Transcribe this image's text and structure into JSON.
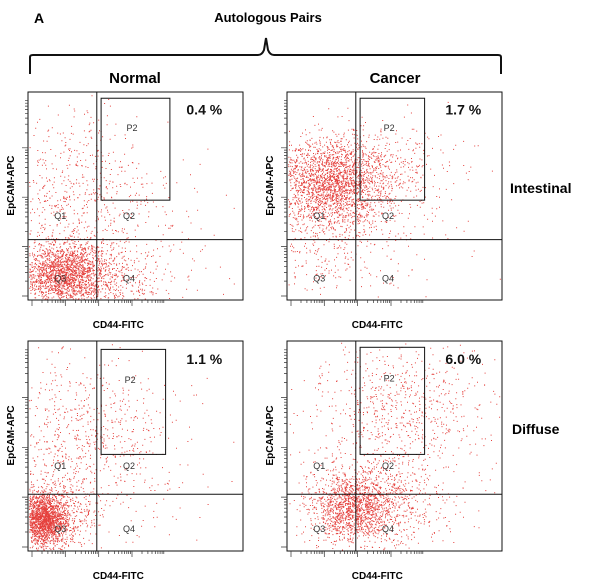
{
  "figure": {
    "panel_letter": "A",
    "group_title": "Autologous Pairs",
    "column_labels": [
      "Normal",
      "Cancer"
    ],
    "row_labels": [
      "Intestinal",
      "Diffuse"
    ]
  },
  "chart_data": [
    {
      "type": "scatter",
      "column": "Normal",
      "row": "Intestinal",
      "xlabel": "CD44-FITC",
      "ylabel": "EpCAM-APC",
      "percentage": "0.4 %",
      "gate": "P2",
      "quadrants": [
        "Q1",
        "Q2",
        "Q3",
        "Q4"
      ],
      "gate_fraction_percent": 0.4,
      "point_color": "#e0201b",
      "clusters": [
        {
          "x": 0.17,
          "y": 0.13,
          "sx": 0.1,
          "sy": 0.07,
          "n": 1500
        },
        {
          "x": 0.25,
          "y": 0.1,
          "sx": 0.2,
          "sy": 0.1,
          "n": 900
        },
        {
          "x": 0.2,
          "y": 0.5,
          "sx": 0.18,
          "sy": 0.2,
          "n": 600
        },
        {
          "x": 0.55,
          "y": 0.35,
          "sx": 0.18,
          "sy": 0.2,
          "n": 130
        }
      ]
    },
    {
      "type": "scatter",
      "column": "Cancer",
      "row": "Intestinal",
      "xlabel": "CD44-FITC",
      "ylabel": "EpCAM-APC",
      "percentage": "1.7 %",
      "gate": "P2",
      "quadrants": [
        "Q1",
        "Q2",
        "Q3",
        "Q4"
      ],
      "gate_fraction_percent": 1.7,
      "point_color": "#e0201b",
      "clusters": [
        {
          "x": 0.18,
          "y": 0.57,
          "sx": 0.13,
          "sy": 0.1,
          "n": 1700
        },
        {
          "x": 0.3,
          "y": 0.58,
          "sx": 0.15,
          "sy": 0.12,
          "n": 700
        },
        {
          "x": 0.18,
          "y": 0.3,
          "sx": 0.15,
          "sy": 0.13,
          "n": 350
        },
        {
          "x": 0.55,
          "y": 0.65,
          "sx": 0.12,
          "sy": 0.1,
          "n": 150
        },
        {
          "x": 0.5,
          "y": 0.35,
          "sx": 0.25,
          "sy": 0.2,
          "n": 100
        }
      ]
    },
    {
      "type": "scatter",
      "column": "Normal",
      "row": "Diffuse",
      "xlabel": "CD44-FITC",
      "ylabel": "EpCAM-APC",
      "percentage": "1.1 %",
      "gate": "P2",
      "quadrants": [
        "Q1",
        "Q2",
        "Q3",
        "Q4"
      ],
      "gate_fraction_percent": 1.1,
      "point_color": "#e0201b",
      "clusters": [
        {
          "x": 0.07,
          "y": 0.15,
          "sx": 0.05,
          "sy": 0.06,
          "n": 1600
        },
        {
          "x": 0.12,
          "y": 0.18,
          "sx": 0.1,
          "sy": 0.1,
          "n": 700
        },
        {
          "x": 0.25,
          "y": 0.55,
          "sx": 0.18,
          "sy": 0.2,
          "n": 600
        },
        {
          "x": 0.5,
          "y": 0.45,
          "sx": 0.2,
          "sy": 0.25,
          "n": 150
        }
      ]
    },
    {
      "type": "scatter",
      "column": "Cancer",
      "row": "Diffuse",
      "xlabel": "CD44-FITC",
      "ylabel": "EpCAM-APC",
      "percentage": "6.0 %",
      "gate": "P2",
      "quadrants": [
        "Q1",
        "Q2",
        "Q3",
        "Q4"
      ],
      "gate_fraction_percent": 6.0,
      "point_color": "#e0201b",
      "clusters": [
        {
          "x": 0.3,
          "y": 0.2,
          "sx": 0.1,
          "sy": 0.08,
          "n": 1300
        },
        {
          "x": 0.45,
          "y": 0.25,
          "sx": 0.15,
          "sy": 0.12,
          "n": 600
        },
        {
          "x": 0.55,
          "y": 0.72,
          "sx": 0.2,
          "sy": 0.15,
          "n": 500
        },
        {
          "x": 0.45,
          "y": 0.5,
          "sx": 0.25,
          "sy": 0.25,
          "n": 350
        }
      ]
    }
  ]
}
